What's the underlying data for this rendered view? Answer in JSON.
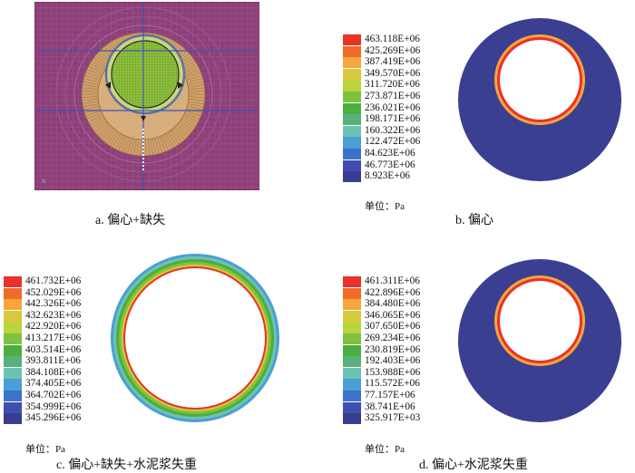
{
  "panels": [
    {
      "id": "a",
      "caption": "a. 偏心+缺失",
      "mesh_colors": {
        "outer": "#8d3f79",
        "band": "#cfa06a",
        "cement_ring": "#5d6fa6",
        "inner_green": "#8fbf3c",
        "grid_line": "#3b55b8"
      },
      "corner_mark": "x"
    },
    {
      "id": "b",
      "caption": "b. 偏心",
      "unit": "单位：Pa",
      "legend": [
        "463.118E+06",
        "425.269E+06",
        "387.419E+06",
        "349.570E+06",
        "311.720E+06",
        "273.871E+06",
        "236.021E+06",
        "198.171E+06",
        "160.322E+06",
        "122.472E+06",
        "84.623E+06",
        "46.773E+06",
        "8.923E+06"
      ]
    },
    {
      "id": "c",
      "caption": "c. 偏心+缺失+水泥浆失重",
      "unit": "单位：Pa",
      "legend": [
        "461.732E+06",
        "452.029E+06",
        "442.326E+06",
        "432.623E+06",
        "422.920E+06",
        "413.217E+06",
        "403.514E+06",
        "393.811E+06",
        "384.108E+06",
        "374.405E+06",
        "364.702E+06",
        "354.999E+06",
        "345.296E+06"
      ]
    },
    {
      "id": "d",
      "caption": "d. 偏心+水泥浆失重",
      "unit": "单位：Pa",
      "legend": [
        "461.311E+06",
        "422.896E+06",
        "384.480E+06",
        "346.065E+06",
        "307.650E+06",
        "269.234E+06",
        "230.819E+06",
        "192.403E+06",
        "153.988E+06",
        "115.572E+06",
        "77.157E+06",
        "38.741E+06",
        "325.917E+03"
      ]
    }
  ],
  "colormap": [
    "#e8322a",
    "#f06a2a",
    "#f6a63a",
    "#d9c93a",
    "#b9d43c",
    "#7fc241",
    "#4cae3c",
    "#58b07a",
    "#6ec2b4",
    "#4a9fd6",
    "#3c73c8",
    "#3f4fae",
    "#3a3c8f"
  ]
}
